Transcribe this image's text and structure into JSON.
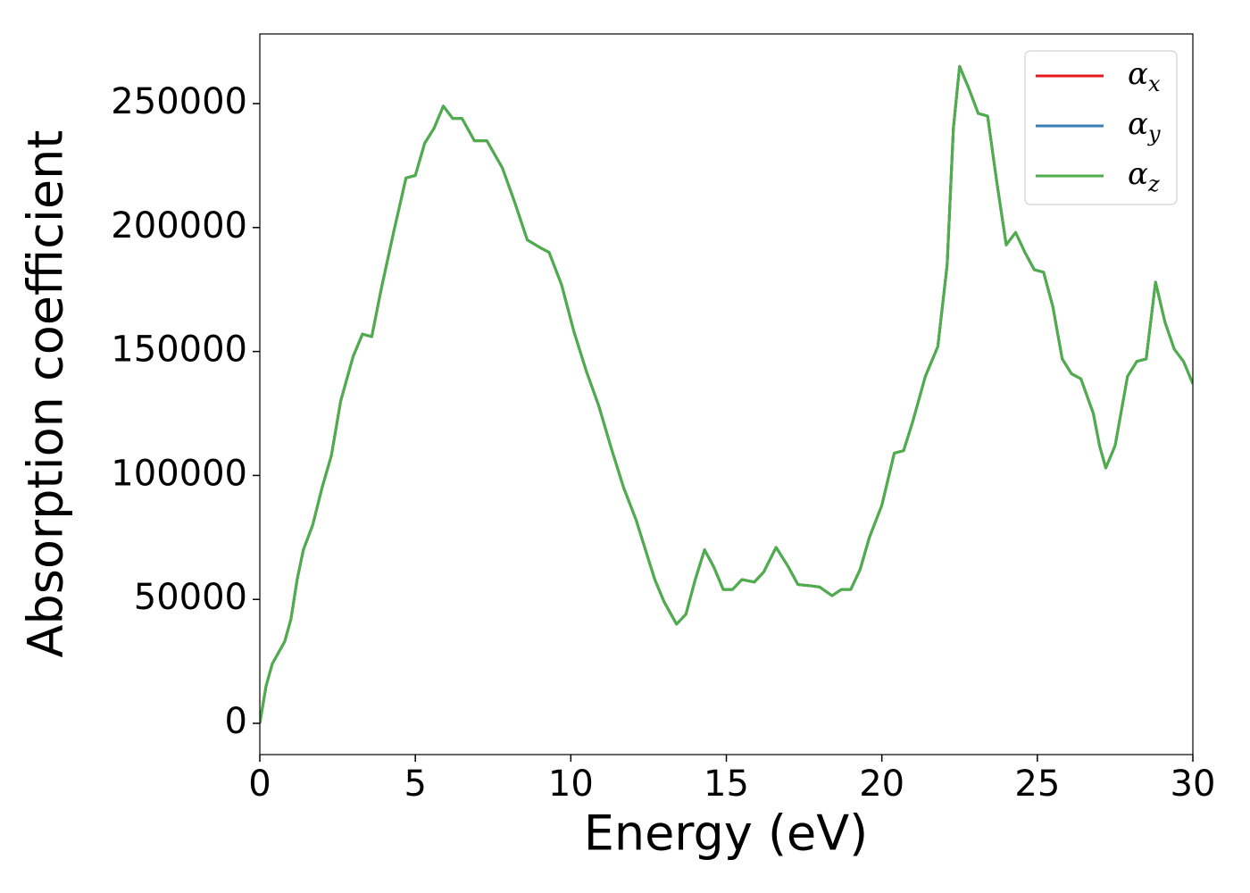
{
  "chart_data": {
    "type": "line",
    "x_label": "Energy (eV)",
    "y_label": "Absorption coefficient",
    "x": [
      0,
      0.2,
      0.4,
      0.8,
      1.0,
      1.2,
      1.4,
      1.7,
      2.0,
      2.3,
      2.6,
      3.0,
      3.3,
      3.6,
      3.9,
      4.3,
      4.7,
      5.0,
      5.3,
      5.6,
      5.9,
      6.2,
      6.5,
      6.9,
      7.3,
      7.8,
      8.2,
      8.6,
      9.0,
      9.3,
      9.7,
      10.1,
      10.5,
      10.9,
      11.3,
      11.7,
      12.1,
      12.4,
      12.7,
      13.0,
      13.4,
      13.7,
      14.0,
      14.3,
      14.6,
      14.9,
      15.2,
      15.5,
      15.9,
      16.2,
      16.6,
      17.0,
      17.3,
      17.7,
      18.0,
      18.4,
      18.7,
      19.0,
      19.3,
      19.6,
      20.0,
      20.4,
      20.7,
      21.0,
      21.4,
      21.8,
      22.1,
      22.3,
      22.5,
      22.8,
      23.1,
      23.4,
      23.7,
      24.0,
      24.3,
      24.6,
      24.9,
      25.2,
      25.5,
      25.8,
      26.1,
      26.4,
      26.8,
      27.0,
      27.2,
      27.5,
      27.9,
      28.2,
      28.5,
      28.8,
      29.1,
      29.4,
      29.7,
      30.0
    ],
    "series": [
      {
        "name": "αx",
        "color": "#e41a1c",
        "values": [
          0,
          15000,
          24000,
          33000,
          42000,
          58000,
          70000,
          80000,
          95000,
          108000,
          130000,
          148000,
          157000,
          156000,
          175000,
          198000,
          220000,
          221000,
          234000,
          240000,
          249000,
          244000,
          244000,
          235000,
          235000,
          224000,
          210000,
          195000,
          192000,
          190000,
          177000,
          158000,
          142000,
          128000,
          111000,
          95000,
          82000,
          70000,
          58000,
          49000,
          40000,
          44000,
          58000,
          70000,
          63000,
          54000,
          54000,
          58000,
          57000,
          61000,
          71000,
          63000,
          56000,
          55500,
          55000,
          51500,
          54000,
          54000,
          62000,
          75000,
          88000,
          109000,
          110000,
          122000,
          140000,
          152000,
          185000,
          240000,
          265000,
          256000,
          246000,
          245000,
          218000,
          193000,
          198000,
          190000,
          183000,
          182000,
          168000,
          147000,
          141000,
          139000,
          125000,
          112000,
          103000,
          112000,
          140000,
          146000,
          147000,
          178000,
          162000,
          151000,
          146000,
          137000
        ]
      },
      {
        "name": "αy",
        "color": "#377eb8",
        "values": [
          0,
          15000,
          24000,
          33000,
          42000,
          58000,
          70000,
          80000,
          95000,
          108000,
          130000,
          148000,
          157000,
          156000,
          175000,
          198000,
          220000,
          221000,
          234000,
          240000,
          249000,
          244000,
          244000,
          235000,
          235000,
          224000,
          210000,
          195000,
          192000,
          190000,
          177000,
          158000,
          142000,
          128000,
          111000,
          95000,
          82000,
          70000,
          58000,
          49000,
          40000,
          44000,
          58000,
          70000,
          63000,
          54000,
          54000,
          58000,
          57000,
          61000,
          71000,
          63000,
          56000,
          55500,
          55000,
          51500,
          54000,
          54000,
          62000,
          75000,
          88000,
          109000,
          110000,
          122000,
          140000,
          152000,
          185000,
          240000,
          265000,
          256000,
          246000,
          245000,
          218000,
          193000,
          198000,
          190000,
          183000,
          182000,
          168000,
          147000,
          141000,
          139000,
          125000,
          112000,
          103000,
          112000,
          140000,
          146000,
          147000,
          178000,
          162000,
          151000,
          146000,
          137000
        ]
      },
      {
        "name": "αz",
        "color": "#4daf4a",
        "values": [
          0,
          15000,
          24000,
          33000,
          42000,
          58000,
          70000,
          80000,
          95000,
          108000,
          130000,
          148000,
          157000,
          156000,
          175000,
          198000,
          220000,
          221000,
          234000,
          240000,
          249000,
          244000,
          244000,
          235000,
          235000,
          224000,
          210000,
          195000,
          192000,
          190000,
          177000,
          158000,
          142000,
          128000,
          111000,
          95000,
          82000,
          70000,
          58000,
          49000,
          40000,
          44000,
          58000,
          70000,
          63000,
          54000,
          54000,
          58000,
          57000,
          61000,
          71000,
          63000,
          56000,
          55500,
          55000,
          51500,
          54000,
          54000,
          62000,
          75000,
          88000,
          109000,
          110000,
          122000,
          140000,
          152000,
          185000,
          240000,
          265000,
          256000,
          246000,
          245000,
          218000,
          193000,
          198000,
          190000,
          183000,
          182000,
          168000,
          147000,
          141000,
          139000,
          125000,
          112000,
          103000,
          112000,
          140000,
          146000,
          147000,
          178000,
          162000,
          151000,
          146000,
          137000
        ]
      }
    ],
    "xlim": [
      0,
      30
    ],
    "xticks": [
      0,
      5,
      10,
      15,
      20,
      25,
      30
    ],
    "ylim": [
      -12600,
      278100
    ],
    "yticks": [
      0,
      50000,
      100000,
      150000,
      200000,
      250000
    ],
    "grid": false,
    "legend": "upper right"
  }
}
